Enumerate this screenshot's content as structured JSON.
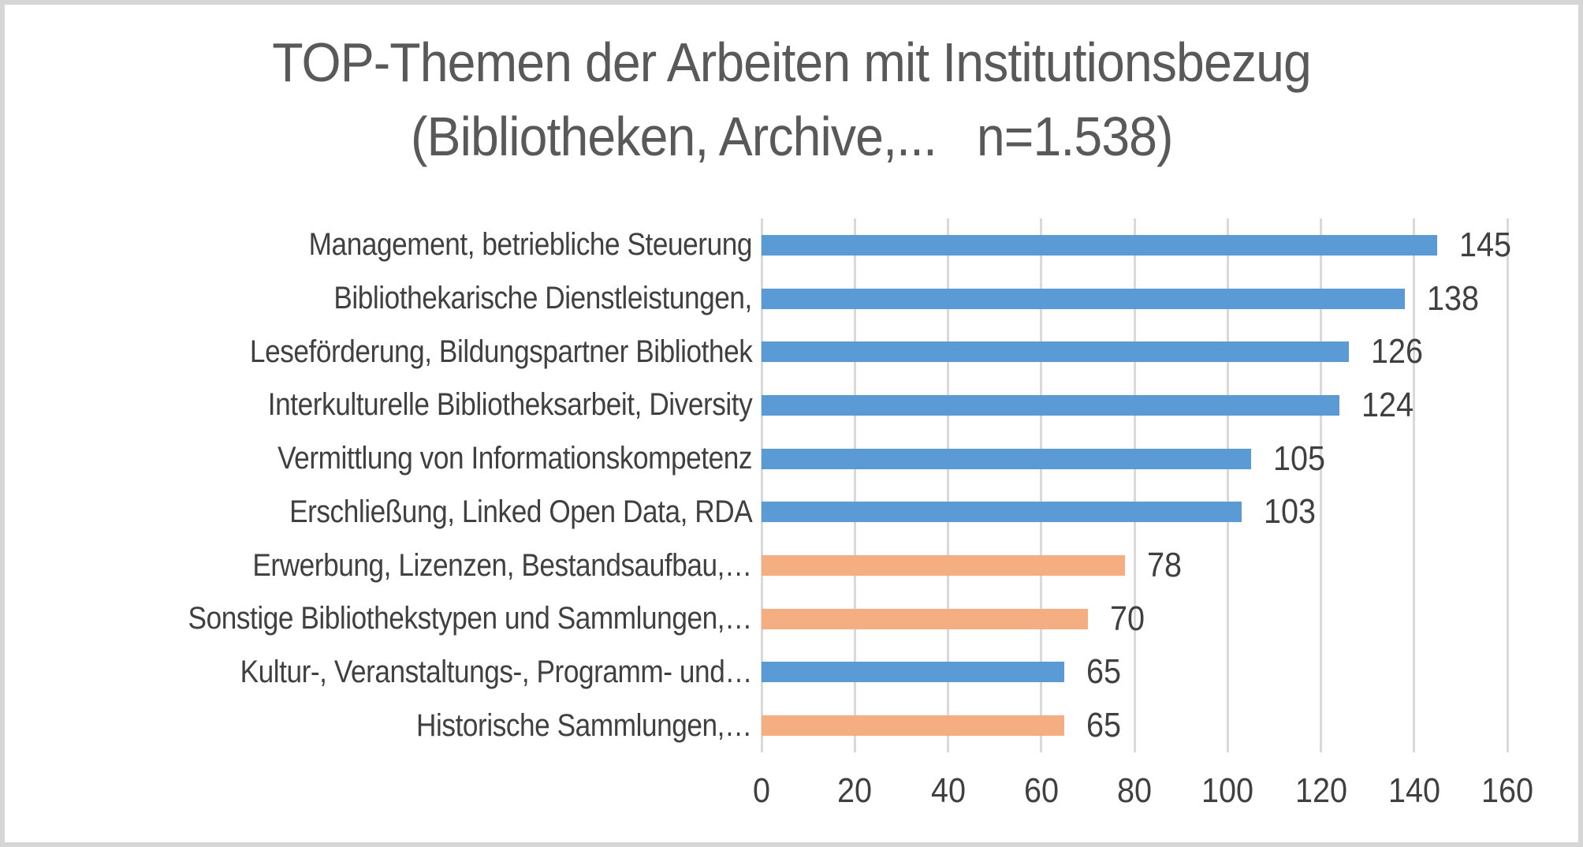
{
  "chart_data": {
    "type": "bar",
    "orientation": "horizontal",
    "title_line1": "TOP-Themen der Arbeiten mit Institutionsbezug",
    "title_line2": "(Bibliotheken, Archive,...   n=1.538)",
    "categories": [
      "Management, betriebliche Steuerung",
      "Bibliothekarische Dienstleistungen,",
      "Leseförderung, Bildungspartner Bibliothek",
      "Interkulturelle Bibliotheksarbeit, Diversity",
      "Vermittlung von Informationskompetenz",
      "Erschließung, Linked Open Data, RDA",
      "Erwerbung, Lizenzen, Bestandsaufbau,…",
      "Sonstige Bibliothekstypen und Sammlungen,…",
      "Kultur-, Veranstaltungs-, Programm- und…",
      "Historische Sammlungen,…"
    ],
    "values": [
      145,
      138,
      126,
      124,
      105,
      103,
      78,
      70,
      65,
      65
    ],
    "bar_color_keys": [
      "blue",
      "blue",
      "blue",
      "blue",
      "blue",
      "blue",
      "orange",
      "orange",
      "blue",
      "orange"
    ],
    "colors": {
      "blue": "#5B9BD5",
      "orange": "#F4AE81"
    },
    "data_labels": "outside-end",
    "xticks": [
      0,
      20,
      40,
      60,
      80,
      100,
      120,
      140,
      160
    ],
    "xlim": [
      0,
      160
    ],
    "grid": "vertical",
    "legend_position": "none",
    "title_color": "#595959",
    "label_color": "#404040",
    "gridline_color": "#D9D9D9",
    "frame_border_color": "#D6D6D6",
    "background": "#FFFFFF"
  }
}
